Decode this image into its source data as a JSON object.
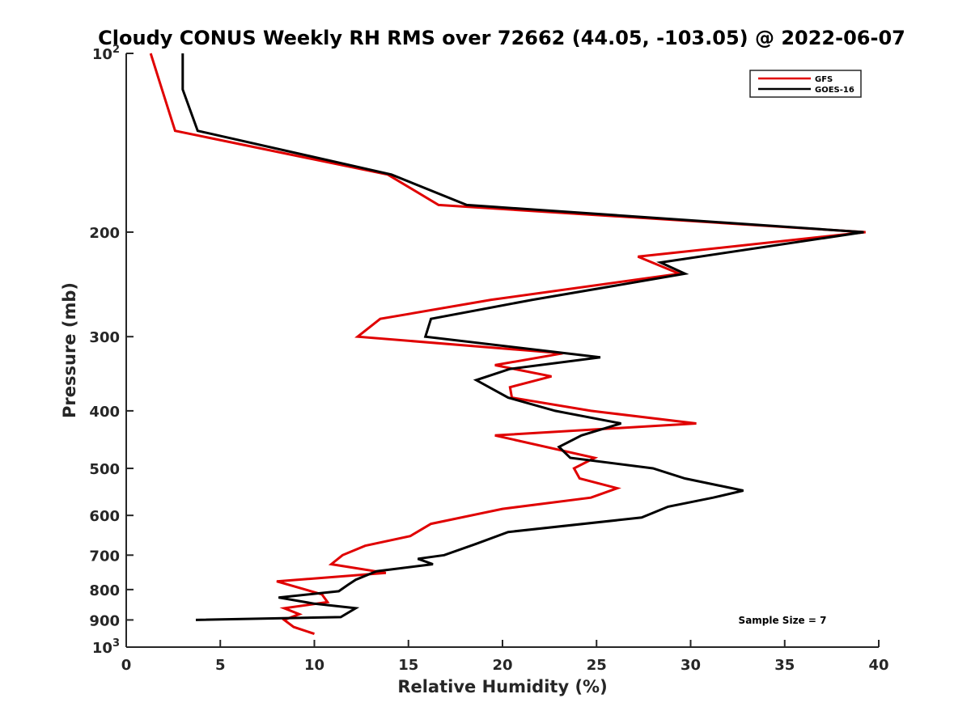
{
  "chart_data": {
    "type": "line",
    "title": "Cloudy CONUS Weekly RH RMS over 72662 (44.05, -103.05) @ 2022-06-07",
    "xlabel": "Relative Humidity (%)",
    "ylabel": "Pressure (mb)",
    "xlim": [
      0,
      40
    ],
    "ylim": [
      100,
      1000
    ],
    "y_scale": "log",
    "y_reversed": true,
    "x_ticks": [
      {
        "value": 0,
        "label": "0"
      },
      {
        "value": 5,
        "label": "5"
      },
      {
        "value": 10,
        "label": "10"
      },
      {
        "value": 15,
        "label": "15"
      },
      {
        "value": 20,
        "label": "20"
      },
      {
        "value": 25,
        "label": "25"
      },
      {
        "value": 30,
        "label": "30"
      },
      {
        "value": 35,
        "label": "35"
      },
      {
        "value": 40,
        "label": "40"
      }
    ],
    "y_ticks": [
      {
        "value": 100,
        "label": "10",
        "sup": "2"
      },
      {
        "value": 200,
        "label": "200"
      },
      {
        "value": 300,
        "label": "300"
      },
      {
        "value": 400,
        "label": "400"
      },
      {
        "value": 500,
        "label": "500"
      },
      {
        "value": 600,
        "label": "600"
      },
      {
        "value": 700,
        "label": "700"
      },
      {
        "value": 800,
        "label": "800"
      },
      {
        "value": 900,
        "label": "900"
      },
      {
        "value": 1000,
        "label": "10",
        "sup": "3"
      }
    ],
    "grid": false,
    "legend_position": "top-right",
    "series": [
      {
        "name": "GFS",
        "color": "#e00000",
        "points": [
          [
            1.3,
            100
          ],
          [
            1.9,
            115
          ],
          [
            2.6,
            135
          ],
          [
            13.9,
            160
          ],
          [
            16.6,
            180
          ],
          [
            39.3,
            200
          ],
          [
            27.2,
            220
          ],
          [
            29.4,
            235
          ],
          [
            19.4,
            260
          ],
          [
            13.5,
            280
          ],
          [
            12.3,
            300
          ],
          [
            23.2,
            320
          ],
          [
            19.6,
            335
          ],
          [
            22.6,
            350
          ],
          [
            20.4,
            365
          ],
          [
            20.5,
            380
          ],
          [
            24.7,
            400
          ],
          [
            30.3,
            420
          ],
          [
            19.6,
            440
          ],
          [
            24.9,
            480
          ],
          [
            23.8,
            500
          ],
          [
            24.1,
            520
          ],
          [
            26.1,
            540
          ],
          [
            24.7,
            560
          ],
          [
            20.0,
            585
          ],
          [
            16.2,
            620
          ],
          [
            15.1,
            650
          ],
          [
            12.7,
            675
          ],
          [
            11.5,
            700
          ],
          [
            10.9,
            725
          ],
          [
            13.8,
            750
          ],
          [
            8.0,
            775
          ],
          [
            10.4,
            815
          ],
          [
            10.7,
            840
          ],
          [
            8.4,
            860
          ],
          [
            9.2,
            880
          ],
          [
            8.4,
            900
          ],
          [
            8.9,
            925
          ],
          [
            10.0,
            950
          ]
        ]
      },
      {
        "name": "GOES-16",
        "color": "#000000",
        "points": [
          [
            3.0,
            100
          ],
          [
            3.0,
            115
          ],
          [
            3.8,
            135
          ],
          [
            14.1,
            160
          ],
          [
            18.1,
            180
          ],
          [
            39.2,
            200
          ],
          [
            28.4,
            225
          ],
          [
            29.7,
            235
          ],
          [
            21.6,
            260
          ],
          [
            16.2,
            280
          ],
          [
            15.9,
            300
          ],
          [
            25.2,
            325
          ],
          [
            20.4,
            340
          ],
          [
            18.6,
            355
          ],
          [
            20.3,
            380
          ],
          [
            22.8,
            400
          ],
          [
            26.3,
            420
          ],
          [
            24.2,
            440
          ],
          [
            23.0,
            460
          ],
          [
            23.6,
            480
          ],
          [
            28.0,
            500
          ],
          [
            29.7,
            520
          ],
          [
            32.8,
            545
          ],
          [
            31.2,
            560
          ],
          [
            28.8,
            580
          ],
          [
            27.4,
            605
          ],
          [
            20.3,
            640
          ],
          [
            18.6,
            670
          ],
          [
            16.9,
            700
          ],
          [
            15.5,
            710
          ],
          [
            16.3,
            725
          ],
          [
            13.3,
            745
          ],
          [
            12.2,
            770
          ],
          [
            11.8,
            785
          ],
          [
            11.3,
            805
          ],
          [
            8.1,
            825
          ],
          [
            10.0,
            845
          ],
          [
            12.2,
            860
          ],
          [
            11.4,
            890
          ],
          [
            3.7,
            900
          ]
        ]
      }
    ],
    "annotations": [
      {
        "text": "Sample Size = 7",
        "position": "bottom-right"
      }
    ]
  }
}
